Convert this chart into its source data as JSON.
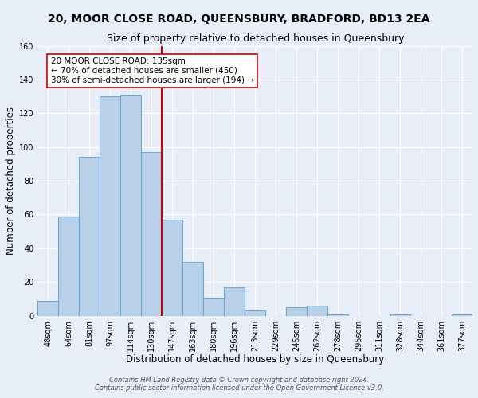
{
  "title": "20, MOOR CLOSE ROAD, QUEENSBURY, BRADFORD, BD13 2EA",
  "subtitle": "Size of property relative to detached houses in Queensbury",
  "xlabel": "Distribution of detached houses by size in Queensbury",
  "ylabel": "Number of detached properties",
  "bar_labels": [
    "48sqm",
    "64sqm",
    "81sqm",
    "97sqm",
    "114sqm",
    "130sqm",
    "147sqm",
    "163sqm",
    "180sqm",
    "196sqm",
    "213sqm",
    "229sqm",
    "245sqm",
    "262sqm",
    "278sqm",
    "295sqm",
    "311sqm",
    "328sqm",
    "344sqm",
    "361sqm",
    "377sqm"
  ],
  "bar_values": [
    9,
    59,
    94,
    130,
    131,
    97,
    57,
    32,
    10,
    17,
    3,
    0,
    5,
    6,
    1,
    0,
    0,
    1,
    0,
    0,
    1
  ],
  "bar_color": "#b8d0e8",
  "bar_edge_color": "#6aaad4",
  "vline_color": "#cc0000",
  "annotation_text": "20 MOOR CLOSE ROAD: 135sqm\n← 70% of detached houses are smaller (450)\n30% of semi-detached houses are larger (194) →",
  "annotation_box_color": "#ffffff",
  "annotation_box_edge": "#cc0000",
  "ylim": [
    0,
    160
  ],
  "yticks": [
    0,
    20,
    40,
    60,
    80,
    100,
    120,
    140,
    160
  ],
  "footer1": "Contains HM Land Registry data © Crown copyright and database right 2024.",
  "footer2": "Contains public sector information licensed under the Open Government Licence v3.0.",
  "background_color": "#e8eef8",
  "grid_color": "#ffffff",
  "title_fontsize": 10,
  "subtitle_fontsize": 9,
  "axis_label_fontsize": 8.5,
  "tick_fontsize": 7,
  "footer_fontsize": 6,
  "annotation_fontsize": 7.5
}
